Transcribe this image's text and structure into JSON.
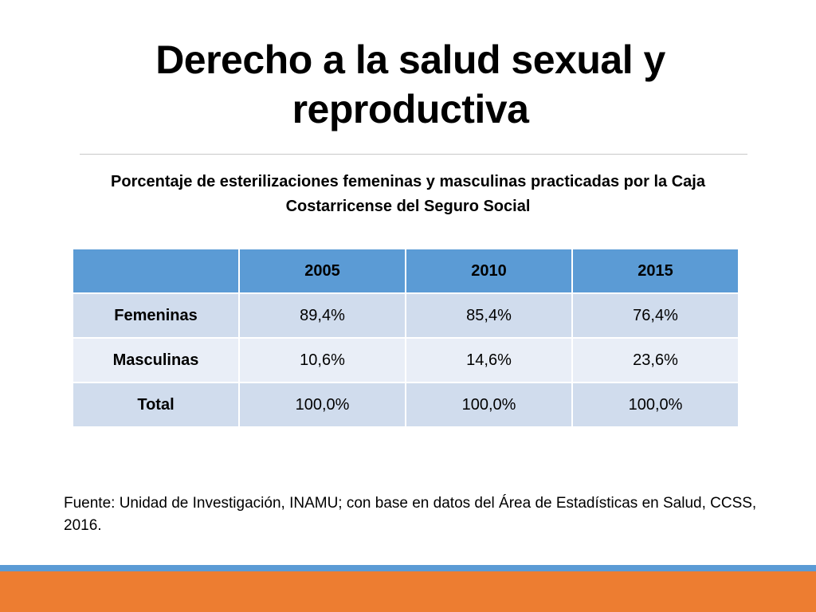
{
  "slide": {
    "title": "Derecho a la salud sexual y reproductiva",
    "subtitle": "Porcentaje de esterilizaciones femeninas y masculinas practicadas por la Caja Costarricense del Seguro Social",
    "source": "Fuente: Unidad de Investigación, INAMU; con base en datos del Área de Estadísticas en Salud, CCSS, 2016.",
    "colors": {
      "header": "#5b9bd5",
      "row_odd": "#d0dced",
      "row_even": "#e9eef7",
      "bar_blue": "#5b9bd5",
      "bar_orange": "#ed7d31"
    }
  },
  "table": {
    "headers": [
      "",
      "2005",
      "2010",
      "2015"
    ],
    "rows": [
      {
        "label": "Femeninas",
        "values": [
          "89,4%",
          "85,4%",
          "76,4%"
        ]
      },
      {
        "label": "Masculinas",
        "values": [
          "10,6%",
          "14,6%",
          "23,6%"
        ]
      },
      {
        "label": "Total",
        "values": [
          "100,0%",
          "100,0%",
          "100,0%"
        ]
      }
    ]
  }
}
